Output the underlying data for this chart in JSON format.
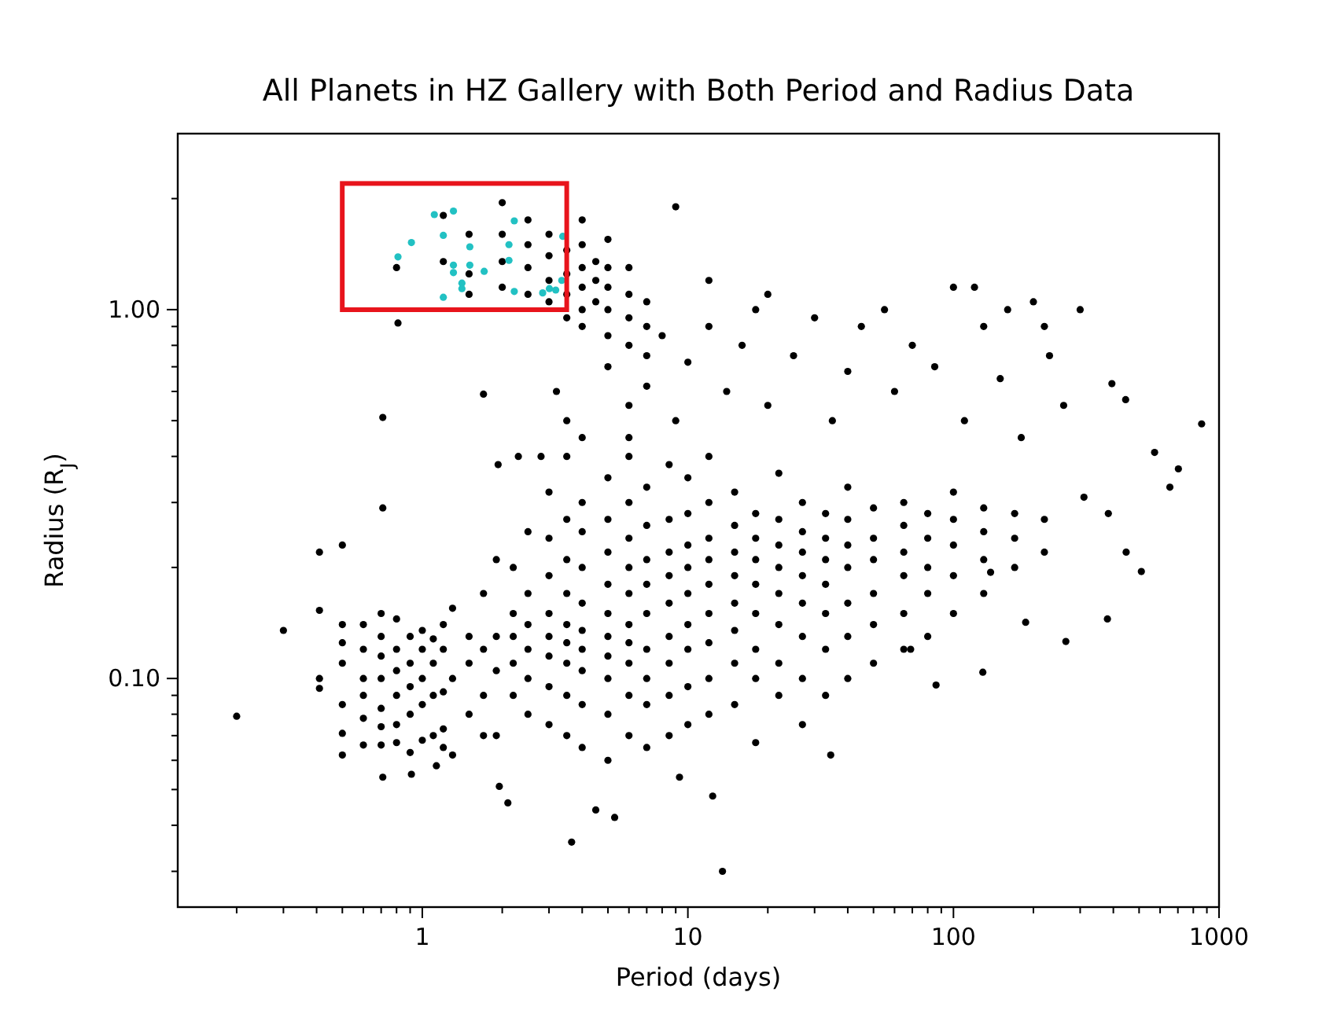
{
  "chart_data": {
    "type": "scatter",
    "title": "All Planets in HZ Gallery with Both Period and Radius Data",
    "xlabel": "Period (days)",
    "ylabel": "Radius (R$_{J}$)",
    "log": "xy",
    "marker": "circle",
    "xlim": [
      0.12,
      1000
    ],
    "ylim": [
      0.024,
      3
    ],
    "xticks": [
      {
        "value": 0.2,
        "label": null
      },
      {
        "value": 0.3,
        "label": null
      },
      {
        "value": 0.4,
        "label": null
      },
      {
        "value": 0.5,
        "label": null
      },
      {
        "value": 0.6,
        "label": null
      },
      {
        "value": 0.7,
        "label": null
      },
      {
        "value": 0.8,
        "label": null
      },
      {
        "value": 0.9,
        "label": null
      },
      1,
      {
        "value": 2,
        "label": null
      },
      {
        "value": 3,
        "label": null
      },
      {
        "value": 4,
        "label": null
      },
      {
        "value": 5,
        "label": null
      },
      {
        "value": 6,
        "label": null
      },
      {
        "value": 7,
        "label": null
      },
      {
        "value": 8,
        "label": null
      },
      {
        "value": 9,
        "label": null
      },
      10,
      {
        "value": 20,
        "label": null
      },
      {
        "value": 30,
        "label": null
      },
      {
        "value": 40,
        "label": null
      },
      {
        "value": 50,
        "label": null
      },
      {
        "value": 60,
        "label": null
      },
      {
        "value": 70,
        "label": null
      },
      {
        "value": 80,
        "label": null
      },
      {
        "value": 90,
        "label": null
      },
      100,
      {
        "value": 200,
        "label": null
      },
      {
        "value": 300,
        "label": null
      },
      {
        "value": 400,
        "label": null
      },
      {
        "value": 500,
        "label": null
      },
      {
        "value": 600,
        "label": null
      },
      {
        "value": 700,
        "label": null
      },
      {
        "value": 800,
        "label": null
      },
      {
        "value": 900,
        "label": null
      },
      1000
    ],
    "yticks": [
      {
        "value": 0.03,
        "label": null
      },
      {
        "value": 0.04,
        "label": null
      },
      {
        "value": 0.05,
        "label": null
      },
      {
        "value": 0.06,
        "label": null
      },
      {
        "value": 0.07,
        "label": null
      },
      {
        "value": 0.08,
        "label": null
      },
      {
        "value": 0.09,
        "label": null
      },
      {
        "value": 0.1,
        "label": "0.10"
      },
      {
        "value": 0.2,
        "label": null
      },
      {
        "value": 0.3,
        "label": null
      },
      {
        "value": 0.4,
        "label": null
      },
      {
        "value": 0.5,
        "label": null
      },
      {
        "value": 0.6,
        "label": null
      },
      {
        "value": 0.7,
        "label": null
      },
      {
        "value": 0.8,
        "label": null
      },
      {
        "value": 0.9,
        "label": null
      },
      {
        "value": 1,
        "label": "1.00"
      },
      {
        "value": 2,
        "label": null
      }
    ],
    "series": [
      {
        "color": "#000000",
        "x": [
          0.2,
          0.3,
          0.41,
          0.41,
          0.41,
          0.41,
          0.5,
          0.71,
          0.71,
          0.71,
          1.7,
          1.93,
          0.91,
          1.13,
          1.95,
          2.1,
          3.65,
          4.5,
          5.3,
          13.5,
          9.3,
          12.4,
          34.5,
          86,
          129,
          380,
          510,
          447,
          860,
          572,
          703,
          653,
          383,
          310,
          395,
          445,
          265,
          138,
          187,
          69,
          0.81,
          0.5,
          0.5,
          0.5,
          0.5,
          0.5,
          0.5,
          0.6,
          0.6,
          0.6,
          0.6,
          0.6,
          0.6,
          0.7,
          0.7,
          0.7,
          0.7,
          0.7,
          0.7,
          0.7,
          0.8,
          0.8,
          0.8,
          0.8,
          0.8,
          0.8,
          0.9,
          0.9,
          0.9,
          0.9,
          0.9,
          1,
          1,
          1,
          1,
          1,
          1.1,
          1.1,
          1.1,
          1.1,
          1.2,
          1.2,
          1.2,
          1.2,
          1.2,
          1.3,
          1.3,
          1.3,
          1.5,
          1.5,
          1.5,
          1.7,
          1.7,
          1.7,
          1.7,
          1.9,
          1.9,
          1.9,
          1.9,
          2.2,
          2.2,
          2.2,
          2.2,
          2.2,
          2.5,
          2.5,
          2.5,
          2.5,
          2.5,
          2.5,
          3,
          3,
          3,
          3,
          3,
          3,
          3,
          3,
          3.5,
          3.5,
          3.5,
          3.5,
          3.5,
          3.5,
          3.5,
          3.5,
          3.5,
          4,
          4,
          4,
          4,
          4,
          4,
          4,
          4,
          4,
          5,
          5,
          5,
          5,
          5,
          5,
          5,
          5,
          5,
          5,
          6,
          6,
          6,
          6,
          6,
          6,
          6,
          6,
          6,
          6,
          7,
          7,
          7,
          7,
          7,
          7,
          7,
          7,
          7,
          8.5,
          8.5,
          8.5,
          8.5,
          8.5,
          8.5,
          8.5,
          8.5,
          8.5,
          10,
          10,
          10,
          10,
          10,
          10,
          10,
          10,
          10,
          12,
          12,
          12,
          12,
          12,
          12,
          12,
          12,
          12,
          15,
          15,
          15,
          15,
          15,
          15,
          15,
          15,
          18,
          18,
          18,
          18,
          18,
          18,
          18,
          18,
          22,
          22,
          22,
          22,
          22,
          22,
          22,
          22,
          27,
          27,
          27,
          27,
          27,
          27,
          27,
          27,
          33,
          33,
          33,
          33,
          33,
          33,
          33,
          40,
          40,
          40,
          40,
          40,
          40,
          40,
          50,
          50,
          50,
          50,
          50,
          50,
          65,
          65,
          65,
          65,
          65,
          65,
          80,
          80,
          80,
          80,
          80,
          100,
          100,
          100,
          100,
          100,
          130,
          130,
          130,
          130,
          170,
          170,
          170,
          220,
          220,
          3,
          3,
          3,
          3,
          3.5,
          3.5,
          3.5,
          3.5,
          4,
          4,
          4,
          4,
          4,
          4,
          4.5,
          4.5,
          4.5,
          5,
          5,
          5,
          5,
          5,
          6,
          6,
          6,
          6,
          7,
          7,
          7,
          2.5,
          2.5,
          2.5,
          2.5,
          2,
          2,
          2,
          2,
          1.5,
          1.5,
          1.5,
          1.2,
          1.2,
          0.8,
          3.2,
          3.5,
          4,
          5,
          6,
          7,
          8,
          9,
          10,
          12,
          14,
          16,
          18,
          20,
          25,
          30,
          35,
          40,
          45,
          55,
          60,
          70,
          85,
          100,
          110,
          130,
          150,
          180,
          200,
          230,
          260,
          300,
          9,
          12,
          20,
          6,
          2.3,
          2.8,
          120,
          160,
          220
        ],
        "values": [
          0.079,
          0.135,
          0.22,
          0.153,
          0.1,
          0.094,
          0.23,
          0.51,
          0.29,
          0.054,
          0.59,
          0.38,
          0.055,
          0.058,
          0.051,
          0.046,
          0.036,
          0.044,
          0.042,
          0.03,
          0.054,
          0.048,
          0.062,
          0.096,
          0.104,
          0.145,
          0.195,
          0.22,
          0.49,
          0.41,
          0.37,
          0.33,
          0.28,
          0.31,
          0.63,
          0.57,
          0.126,
          0.194,
          0.142,
          0.12,
          0.92,
          0.062,
          0.071,
          0.085,
          0.11,
          0.125,
          0.14,
          0.066,
          0.078,
          0.09,
          0.1,
          0.12,
          0.14,
          0.066,
          0.074,
          0.083,
          0.1,
          0.115,
          0.13,
          0.15,
          0.067,
          0.075,
          0.09,
          0.105,
          0.12,
          0.145,
          0.063,
          0.08,
          0.095,
          0.11,
          0.13,
          0.068,
          0.085,
          0.1,
          0.12,
          0.135,
          0.07,
          0.09,
          0.11,
          0.128,
          0.065,
          0.073,
          0.092,
          0.12,
          0.14,
          0.062,
          0.1,
          0.155,
          0.08,
          0.11,
          0.13,
          0.07,
          0.09,
          0.12,
          0.17,
          0.07,
          0.105,
          0.13,
          0.21,
          0.09,
          0.11,
          0.13,
          0.15,
          0.2,
          0.08,
          0.1,
          0.12,
          0.14,
          0.17,
          0.25,
          0.075,
          0.095,
          0.115,
          0.13,
          0.15,
          0.19,
          0.24,
          0.32,
          0.07,
          0.09,
          0.11,
          0.125,
          0.14,
          0.17,
          0.21,
          0.27,
          0.4,
          0.065,
          0.085,
          0.105,
          0.12,
          0.135,
          0.16,
          0.2,
          0.25,
          0.3,
          0.06,
          0.08,
          0.1,
          0.115,
          0.13,
          0.15,
          0.18,
          0.22,
          0.27,
          0.35,
          0.07,
          0.09,
          0.11,
          0.125,
          0.14,
          0.17,
          0.2,
          0.24,
          0.3,
          0.45,
          0.065,
          0.085,
          0.1,
          0.12,
          0.15,
          0.18,
          0.21,
          0.26,
          0.33,
          0.07,
          0.09,
          0.11,
          0.13,
          0.16,
          0.19,
          0.22,
          0.27,
          0.38,
          0.075,
          0.095,
          0.12,
          0.14,
          0.17,
          0.2,
          0.23,
          0.28,
          0.35,
          0.08,
          0.1,
          0.125,
          0.15,
          0.18,
          0.21,
          0.24,
          0.3,
          0.4,
          0.085,
          0.11,
          0.135,
          0.16,
          0.19,
          0.22,
          0.26,
          0.32,
          0.067,
          0.1,
          0.12,
          0.15,
          0.18,
          0.21,
          0.24,
          0.28,
          0.09,
          0.11,
          0.14,
          0.17,
          0.2,
          0.23,
          0.27,
          0.36,
          0.075,
          0.1,
          0.13,
          0.16,
          0.19,
          0.22,
          0.25,
          0.3,
          0.09,
          0.12,
          0.15,
          0.18,
          0.21,
          0.24,
          0.28,
          0.1,
          0.13,
          0.16,
          0.2,
          0.23,
          0.27,
          0.33,
          0.11,
          0.14,
          0.17,
          0.21,
          0.24,
          0.29,
          0.12,
          0.15,
          0.19,
          0.22,
          0.26,
          0.3,
          0.13,
          0.17,
          0.2,
          0.24,
          0.28,
          0.15,
          0.19,
          0.23,
          0.27,
          0.32,
          0.17,
          0.21,
          0.25,
          0.29,
          0.2,
          0.24,
          0.28,
          0.22,
          0.27,
          1.05,
          1.2,
          1.4,
          1.6,
          0.95,
          1.1,
          1.25,
          1.45,
          0.9,
          1,
          1.15,
          1.3,
          1.5,
          1.75,
          1.05,
          1.2,
          1.35,
          0.85,
          1,
          1.15,
          1.3,
          1.55,
          0.8,
          0.95,
          1.1,
          1.3,
          0.75,
          0.9,
          1.05,
          1.1,
          1.3,
          1.5,
          1.75,
          1.15,
          1.35,
          1.6,
          1.95,
          1.1,
          1.25,
          1.6,
          1.35,
          1.8,
          1.3,
          0.6,
          0.5,
          0.45,
          0.7,
          0.55,
          0.62,
          0.85,
          0.5,
          0.72,
          0.9,
          0.6,
          0.8,
          1,
          0.55,
          0.75,
          0.95,
          0.5,
          0.68,
          0.9,
          1,
          0.6,
          0.8,
          0.7,
          1.15,
          0.5,
          0.9,
          0.65,
          0.45,
          1.05,
          0.75,
          0.55,
          1,
          1.9,
          1.2,
          1.1,
          0.4,
          0.4,
          0.4,
          1.15,
          1,
          0.9
        ]
      },
      {
        "color": "#22c1c3",
        "x": [
          0.81,
          0.91,
          1.11,
          1.31,
          1.2,
          1.51,
          1.31,
          1.31,
          1.51,
          1.71,
          1.41,
          1.41,
          1.2,
          2.22,
          2.12,
          2.12,
          2.22,
          2.84,
          3.01,
          3.18,
          3.38,
          3.35
        ],
        "values": [
          1.39,
          1.52,
          1.81,
          1.85,
          1.59,
          1.48,
          1.32,
          1.26,
          1.32,
          1.27,
          1.18,
          1.14,
          1.08,
          1.74,
          1.5,
          1.36,
          1.12,
          1.11,
          1.14,
          1.13,
          1.58,
          1.2
        ]
      }
    ]
  }
}
